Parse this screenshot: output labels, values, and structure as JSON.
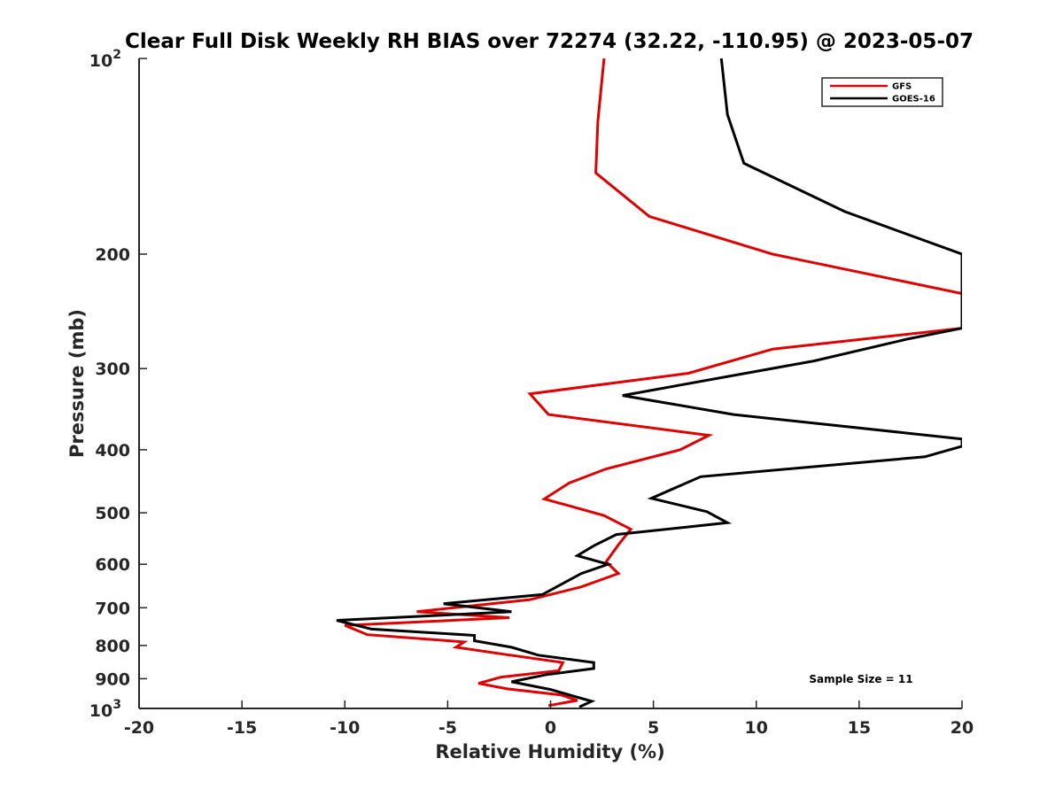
{
  "chart_data": {
    "type": "line",
    "title": "Clear Full Disk Weekly RH BIAS over 72274 (32.22, -110.95) @ 2023-05-07",
    "xlabel": "Relative Humidity (%)",
    "ylabel": "Pressure (mb)",
    "xlim": [
      -20,
      20
    ],
    "ylim": [
      100,
      1000
    ],
    "y_scale": "log",
    "y_reversed": true,
    "x_ticks": [
      "-20",
      "-15",
      "-10",
      "-5",
      "0",
      "5",
      "10",
      "15",
      "20"
    ],
    "y_ticks": [
      {
        "value": 100,
        "base": "10",
        "exp": "2"
      },
      {
        "value": 200,
        "label": "200"
      },
      {
        "value": 300,
        "label": "300"
      },
      {
        "value": 400,
        "label": "400"
      },
      {
        "value": 500,
        "label": "500"
      },
      {
        "value": 600,
        "label": "600"
      },
      {
        "value": 700,
        "label": "700"
      },
      {
        "value": 800,
        "label": "800"
      },
      {
        "value": 900,
        "label": "900"
      },
      {
        "value": 1000,
        "base": "10",
        "exp": "3"
      }
    ],
    "grid": false,
    "legend_position": "top-right",
    "annotation": "Sample Size = 11",
    "series": [
      {
        "name": "GFS",
        "color": "#e00000",
        "points": [
          [
            2.6,
            100
          ],
          [
            2.3,
            125
          ],
          [
            2.2,
            150
          ],
          [
            4.8,
            175
          ],
          [
            10.8,
            200
          ],
          [
            20,
            230
          ],
          [
            20,
            260
          ],
          [
            10.8,
            280
          ],
          [
            6.7,
            305
          ],
          [
            -1.0,
            328
          ],
          [
            -0.1,
            353
          ],
          [
            7.7,
            380
          ],
          [
            6.3,
            400
          ],
          [
            2.7,
            428
          ],
          [
            0.9,
            450
          ],
          [
            -0.3,
            476
          ],
          [
            2.6,
            505
          ],
          [
            3.9,
            530
          ],
          [
            3.3,
            560
          ],
          [
            2.7,
            595
          ],
          [
            3.3,
            620
          ],
          [
            1.5,
            650
          ],
          [
            -1.0,
            680
          ],
          [
            -6.5,
            710
          ],
          [
            -2.0,
            725
          ],
          [
            -10.0,
            745
          ],
          [
            -8.9,
            770
          ],
          [
            -4.2,
            790
          ],
          [
            -4.6,
            805
          ],
          [
            -2.3,
            825
          ],
          [
            0.6,
            850
          ],
          [
            0.4,
            875
          ],
          [
            -2.4,
            895
          ],
          [
            -3.5,
            915
          ],
          [
            -2.1,
            933
          ],
          [
            0.5,
            953
          ],
          [
            1.3,
            972
          ],
          [
            -0.1,
            990
          ]
        ]
      },
      {
        "name": "GOES-16",
        "color": "#000000",
        "points": [
          [
            8.3,
            100
          ],
          [
            8.6,
            122
          ],
          [
            9.4,
            145
          ],
          [
            14.3,
            172
          ],
          [
            20,
            200
          ],
          [
            20,
            260
          ],
          [
            17.4,
            270
          ],
          [
            12.8,
            292
          ],
          [
            3.5,
            330
          ],
          [
            8.9,
            353
          ],
          [
            20,
            385
          ],
          [
            20,
            395
          ],
          [
            18.2,
            410
          ],
          [
            7.3,
            440
          ],
          [
            4.9,
            475
          ],
          [
            7.6,
            498
          ],
          [
            8.6,
            518
          ],
          [
            3.2,
            540
          ],
          [
            2.1,
            562
          ],
          [
            1.3,
            582
          ],
          [
            2.8,
            600
          ],
          [
            1.5,
            620
          ],
          [
            -0.4,
            668
          ],
          [
            -5.2,
            690
          ],
          [
            -1.9,
            710
          ],
          [
            -10.4,
            732
          ],
          [
            -8.7,
            755
          ],
          [
            -3.7,
            772
          ],
          [
            -3.7,
            787
          ],
          [
            -1.9,
            805
          ],
          [
            -0.6,
            828
          ],
          [
            2.1,
            850
          ],
          [
            2.1,
            868
          ],
          [
            -0.2,
            887
          ],
          [
            -1.9,
            910
          ],
          [
            0,
            935
          ],
          [
            1.0,
            955
          ],
          [
            2.0,
            975
          ],
          [
            1.4,
            995
          ]
        ]
      }
    ]
  }
}
